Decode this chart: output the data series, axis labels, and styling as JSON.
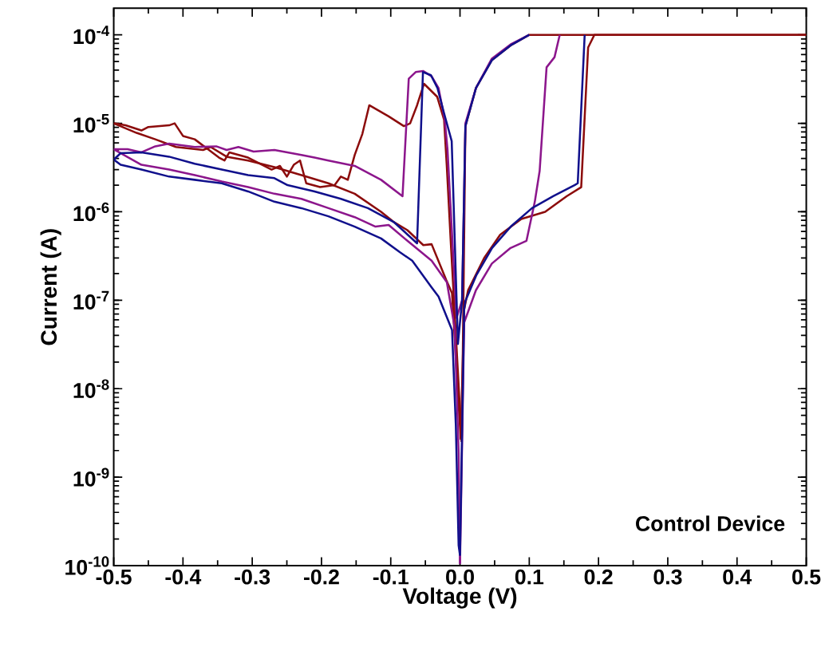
{
  "chart_data": {
    "type": "line",
    "xlabel": "Voltage (V)",
    "ylabel": "Current (A)",
    "annotations": [
      "Control Device"
    ],
    "log": "y",
    "line_style": "solid",
    "xlim": [
      -0.5,
      0.5
    ],
    "ylim": [
      1e-10,
      0.0002
    ],
    "xticks": [
      -0.5,
      -0.4,
      -0.3,
      -0.2,
      -0.1,
      {
        "value": 0,
        "label": "0.0"
      },
      0.1,
      0.2,
      0.3,
      0.4,
      0.5
    ],
    "yticks": [
      {
        "value": 1e-10,
        "label": "10$^{-10}$"
      },
      {
        "value": 1e-09,
        "label": "10$^{-9}$"
      },
      {
        "value": 1e-08,
        "label": "10$^{-8}$"
      },
      {
        "value": 1e-07,
        "label": "10$^{-7}$"
      },
      {
        "value": 1e-06,
        "label": "10$^{-6}$"
      },
      {
        "value": 1e-05,
        "label": "10$^{-5}$"
      },
      {
        "value": 0.0001,
        "label": "10$^{-4}$"
      }
    ],
    "series": [
      {
        "color": "#8c0c0c",
        "x": [
          0.0025,
          -0.0135,
          -0.019,
          -0.023,
          -0.033,
          -0.052,
          -0.062,
          -0.072,
          -0.081,
          -0.103,
          -0.131,
          -0.141,
          -0.152,
          -0.162,
          -0.172,
          -0.181,
          -0.202,
          -0.222,
          -0.231,
          -0.24,
          -0.25,
          -0.26,
          -0.272,
          -0.306,
          -0.333,
          -0.34,
          -0.348,
          -0.364,
          -0.383,
          -0.4,
          -0.412,
          -0.42,
          -0.45,
          -0.46,
          -0.483,
          -0.5
        ],
        "values": [
          2.5e-09,
          4.8e-07,
          3.2e-06,
          1.1e-05,
          2e-05,
          2.8e-05,
          1.6e-05,
          1e-05,
          9.3e-06,
          1.2e-05,
          1.6e-05,
          7.6e-06,
          4.4e-06,
          2.3e-06,
          2.5e-06,
          2e-06,
          1.9e-06,
          2.1e-06,
          3.8e-06,
          3.4e-06,
          2.5e-06,
          3.3e-06,
          3e-06,
          4.1e-06,
          4.7e-06,
          3.8e-06,
          4.1e-06,
          5.1e-06,
          6.6e-06,
          7.2e-06,
          1e-05,
          9.5e-06,
          9.1e-06,
          8.3e-06,
          9.5e-06,
          1e-05
        ]
      },
      {
        "color": "#8c0c0c",
        "x": [
          -0.5,
          -0.467,
          -0.44,
          -0.41,
          -0.371,
          -0.36,
          -0.337,
          -0.306,
          -0.268,
          -0.229,
          -0.19,
          -0.152,
          -0.114,
          -0.095,
          -0.076,
          -0.053,
          -0.041,
          -0.02,
          -0.0115,
          0.001,
          0.006,
          0.0117,
          0.0348,
          0.058,
          0.0885,
          0.123,
          0.154,
          0.175,
          0.185,
          0.194,
          0.5
        ],
        "values": [
          1e-05,
          7.8e-06,
          6.6e-06,
          5.4e-06,
          5e-06,
          5.4e-06,
          4.2e-06,
          3.8e-06,
          3.2e-06,
          2.6e-06,
          2.1e-06,
          1.6e-06,
          1e-06,
          7.6e-07,
          6.2e-07,
          4.2e-07,
          4.3e-07,
          1.7e-07,
          1.2e-07,
          2.7e-09,
          7.9e-08,
          1.3e-07,
          3e-07,
          5.5e-07,
          8.3e-07,
          1e-06,
          1.5e-06,
          1.9e-06,
          7.2e-05,
          0.0001,
          0.0001
        ]
      },
      {
        "color": "#8c0c0c",
        "x": [
          0.5,
          0.1,
          0.073,
          0.046,
          0.023,
          0.0078,
          0.004,
          0.0025
        ],
        "values": [
          0.0001,
          0.0001,
          7.6e-05,
          5.2e-05,
          2.5e-05,
          9.3e-06,
          2.3e-08,
          2.5e-09
        ]
      },
      {
        "color": "#8c168c",
        "x": [
          0.0,
          0.006,
          0.023,
          0.046,
          0.073,
          0.096,
          0.108,
          0.115,
          0.125,
          0.1365,
          0.144
        ],
        "values": [
          1.05e-10,
          5.6e-08,
          1.3e-07,
          2.6e-07,
          3.9e-07,
          4.7e-07,
          1.3e-06,
          2.9e-06,
          4.3e-05,
          5.6e-05,
          0.0001
        ]
      },
      {
        "color": "#8c168c",
        "x": [
          0.1,
          0.073,
          0.046,
          0.023,
          0.0078,
          0.003,
          -0.005,
          -0.018,
          -0.022,
          -0.031,
          -0.041,
          -0.053,
          -0.064,
          -0.074,
          -0.083,
          -0.114,
          -0.152,
          -0.19,
          -0.21,
          -0.229,
          -0.268,
          -0.298,
          -0.32,
          -0.337,
          -0.352,
          -0.383,
          -0.42,
          -0.44,
          -0.46,
          -0.48,
          -0.5
        ],
        "values": [
          0.0001,
          7.8e-05,
          5.4e-05,
          2.5e-05,
          1e-05,
          1e-07,
          6.3e-08,
          5e-06,
          1.1e-05,
          2.5e-05,
          3.4e-05,
          3.9e-05,
          3.8e-05,
          3.2e-05,
          1.5e-06,
          2.3e-06,
          3.3e-06,
          3.8e-06,
          4.1e-06,
          4.4e-06,
          5e-06,
          4.8e-06,
          5.4e-06,
          5e-06,
          5.5e-06,
          5.4e-06,
          5.9e-06,
          5.5e-06,
          4.7e-06,
          5.1e-06,
          5.1e-06
        ]
      },
      {
        "color": "#8c168c",
        "x": [
          -0.5,
          -0.46,
          -0.42,
          -0.383,
          -0.344,
          -0.306,
          -0.268,
          -0.229,
          -0.19,
          -0.152,
          -0.122,
          -0.103,
          -0.076,
          -0.041,
          -0.019,
          -0.0077,
          -0.002,
          0.0
        ],
        "values": [
          5.1e-06,
          3.4e-06,
          3e-06,
          2.6e-06,
          2.2e-06,
          1.9e-06,
          1.6e-06,
          1.4e-06,
          1.1e-06,
          8.7e-07,
          6.8e-07,
          7.1e-07,
          4.7e-07,
          2.8e-07,
          1.6e-07,
          4.9e-08,
          1.9e-09,
          1.05e-10
        ]
      },
      {
        "color": "#10108c",
        "x": [
          0.0,
          0.006,
          0.0078,
          0.0233,
          0.0463,
          0.0732,
          0.104,
          0.1346,
          0.1653,
          0.17,
          0.18
        ],
        "values": [
          1.3e-10,
          7.9e-08,
          9.8e-08,
          1.9e-07,
          3.9e-07,
          6.8e-07,
          1.1e-06,
          1.5e-06,
          2e-06,
          2.1e-06,
          0.0001
        ]
      },
      {
        "color": "#10108c",
        "x": [
          0.1,
          0.073,
          0.0463,
          0.023,
          0.0078,
          0.003,
          -0.003,
          -0.012,
          -0.023,
          -0.0325,
          -0.042,
          -0.0535,
          -0.062,
          -0.095,
          -0.133,
          -0.172,
          -0.21,
          -0.249,
          -0.268,
          -0.306,
          -0.344,
          -0.383,
          -0.42,
          -0.46,
          -0.49,
          -0.5
        ],
        "values": [
          0.0001,
          7.6e-05,
          5.2e-05,
          2.5e-05,
          9.3e-06,
          1e-07,
          3.2e-08,
          6.3e-06,
          1.3e-05,
          2.5e-05,
          3.5e-05,
          3.8e-05,
          4.4e-07,
          7.6e-07,
          1.1e-06,
          1.4e-06,
          1.7e-06,
          2e-06,
          2.4e-06,
          2.6e-06,
          3e-06,
          3.5e-06,
          4.2e-06,
          4.7e-06,
          4.6e-06,
          3.9e-06
        ]
      },
      {
        "color": "#10108c",
        "x": [
          -0.5,
          -0.49,
          -0.46,
          -0.42,
          -0.383,
          -0.344,
          -0.306,
          -0.268,
          -0.229,
          -0.19,
          -0.152,
          -0.114,
          -0.087,
          -0.069,
          -0.041,
          -0.031,
          -0.0115,
          -0.006,
          -0.002,
          0.0
        ],
        "values": [
          3.9e-06,
          3.4e-06,
          3e-06,
          2.5e-06,
          2.3e-06,
          2.1e-06,
          1.7e-06,
          1.3e-06,
          1.1e-06,
          8.9e-07,
          6.8e-07,
          5e-07,
          3.5e-07,
          2.8e-07,
          1.4e-07,
          1.1e-07,
          4.6e-08,
          3.8e-09,
          1.7e-10,
          1.3e-10
        ]
      }
    ]
  }
}
